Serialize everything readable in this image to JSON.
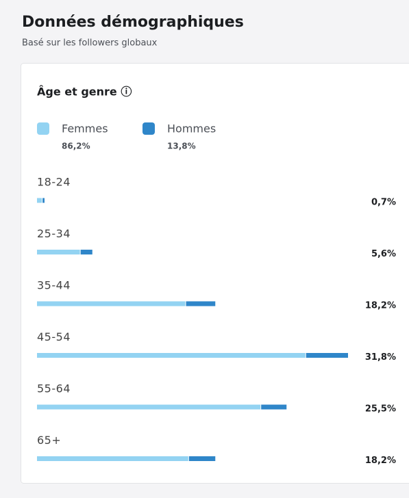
{
  "header": {
    "title": "Données démographiques",
    "subtitle": "Basé sur les followers globaux"
  },
  "chart_data": {
    "type": "bar",
    "orientation": "horizontal",
    "stacked": true,
    "title": "Âge et genre ⓘ",
    "categories": [
      "18-24",
      "25-34",
      "35-44",
      "45-54",
      "55-64",
      "65+"
    ],
    "values": [
      0.7,
      5.6,
      18.2,
      31.8,
      25.5,
      18.2
    ],
    "value_labels": [
      "0,7%",
      "5,6%",
      "18,2%",
      "31,8%",
      "25,5%",
      "18,2%"
    ],
    "series": [
      {
        "name": "Femmes",
        "share": "86,2%",
        "color": "#93d3f2",
        "values": [
          0.5,
          4.4,
          15.2,
          27.5,
          22.9,
          15.5
        ]
      },
      {
        "name": "Hommes",
        "share": "13,8%",
        "color": "#2f86c9",
        "values": [
          0.2,
          1.2,
          3.0,
          4.3,
          2.6,
          2.7
        ]
      }
    ]
  }
}
